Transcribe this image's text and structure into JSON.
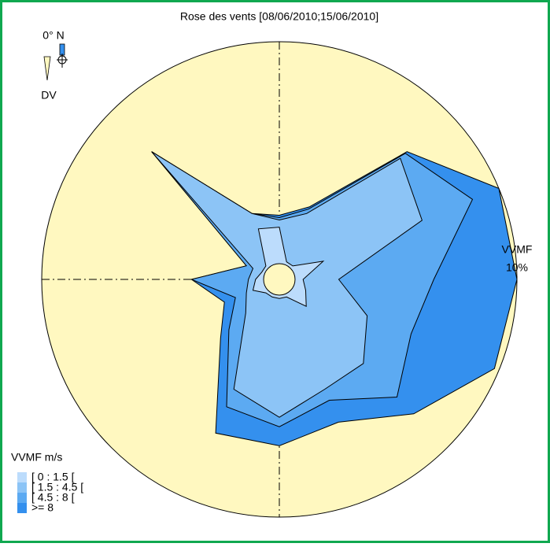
{
  "chart_data": {
    "type": "wind_rose",
    "title": "Rose des vents [08/06/2010;15/06/2010]",
    "north_label": "0° N",
    "direction_label": "DV",
    "axis_label": "VVMF",
    "legend_title": "VVMF m/s",
    "rlim": [
      0,
      10
    ],
    "rticks": [
      {
        "value": 10,
        "label": "10%"
      }
    ],
    "series": [
      {
        "name": "[ 0 : 1.5 [",
        "color": "#bcdcfc",
        "values": [
          2.2,
          0.8,
          0.8,
          2.0,
          1.0,
          1.2,
          1.6,
          0.8,
          0.8,
          0.8,
          0.8,
          1.2,
          1.0,
          0.8,
          0.8,
          2.3
        ]
      },
      {
        "name": "[ 1.5 : 4.5 [",
        "color": "#8cc4f6",
        "values": [
          0.3,
          2.2,
          6.4,
          4.5,
          1.5,
          2.8,
          3.4,
          4.2,
          5.0,
          4.2,
          1.2,
          0.3,
          0.3,
          0.4,
          6.8,
          0.7
        ]
      },
      {
        "name": "[ 4.5 : 8 [",
        "color": "#5caaf2",
        "values": [
          0.1,
          0.2,
          0.3,
          2.3,
          4.0,
          2.0,
          2.0,
          0.5,
          0.4,
          0.8,
          1.0,
          0.5,
          2.4,
          0.3,
          0,
          0
        ]
      },
      {
        "name": ">= 8",
        "color": "#3490ee",
        "values": [
          0.1,
          0.1,
          0.1,
          1.2,
          3.5,
          3.8,
          1.0,
          1.0,
          0.8,
          1.2,
          0.5,
          0.5,
          0,
          0,
          0,
          0
        ]
      }
    ]
  }
}
